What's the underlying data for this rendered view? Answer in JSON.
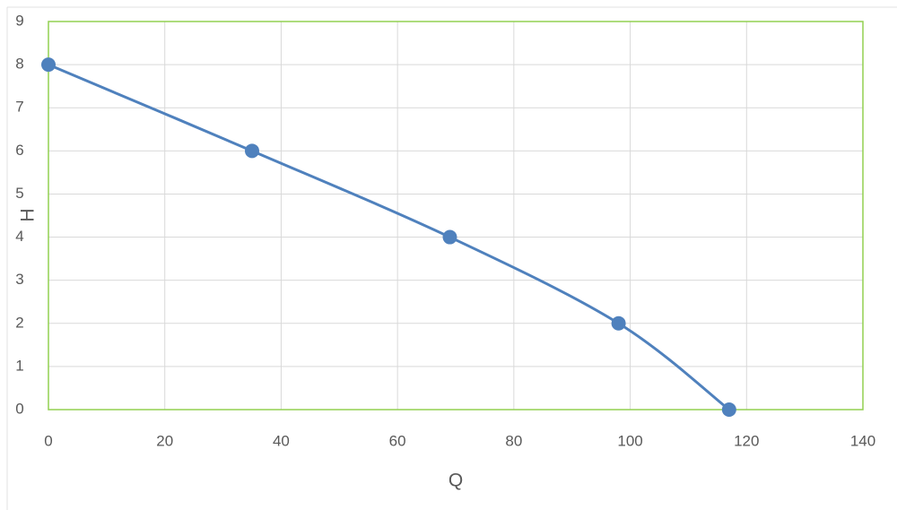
{
  "chart_data": {
    "type": "scatter",
    "line": "smooth",
    "x_label": "Q",
    "y_label": "H",
    "series": [
      {
        "color": "#4f81bd",
        "x": [
          0,
          35,
          69,
          98,
          117
        ],
        "values": [
          8,
          6,
          4,
          2,
          0
        ]
      }
    ],
    "xlim": [
      0,
      140
    ],
    "xticks": [
      0,
      20,
      40,
      60,
      80,
      100,
      120,
      140
    ],
    "ylim": [
      0,
      9
    ],
    "yticks": [
      0,
      1,
      2,
      3,
      4,
      5,
      6,
      7,
      8,
      9
    ],
    "grid": true
  }
}
